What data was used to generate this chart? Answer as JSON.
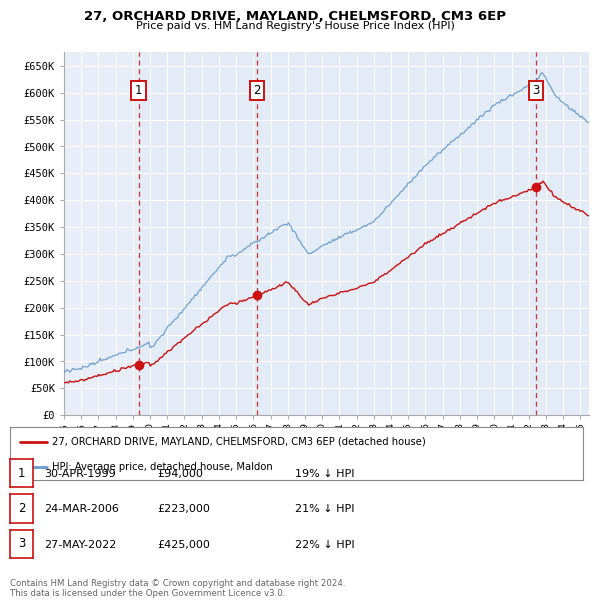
{
  "title": "27, ORCHARD DRIVE, MAYLAND, CHELMSFORD, CM3 6EP",
  "subtitle": "Price paid vs. HM Land Registry's House Price Index (HPI)",
  "ylabel_ticks": [
    "£0",
    "£50K",
    "£100K",
    "£150K",
    "£200K",
    "£250K",
    "£300K",
    "£350K",
    "£400K",
    "£450K",
    "£500K",
    "£550K",
    "£600K",
    "£650K"
  ],
  "ytick_values": [
    0,
    50000,
    100000,
    150000,
    200000,
    250000,
    300000,
    350000,
    400000,
    450000,
    500000,
    550000,
    600000,
    650000
  ],
  "xmin": 1995.0,
  "xmax": 2025.5,
  "ymin": 0,
  "ymax": 675000,
  "hpi_color": "#6699cc",
  "price_color": "#cc1111",
  "annotation_box_color": "#cc1111",
  "sale_dates": [
    1999.33,
    2006.23,
    2022.41
  ],
  "sale_prices": [
    94000,
    223000,
    425000
  ],
  "sale_labels": [
    "1",
    "2",
    "3"
  ],
  "legend_label_red": "27, ORCHARD DRIVE, MAYLAND, CHELMSFORD, CM3 6EP (detached house)",
  "legend_label_blue": "HPI: Average price, detached house, Maldon",
  "table_rows": [
    [
      "1",
      "30-APR-1999",
      "£94,000",
      "19% ↓ HPI"
    ],
    [
      "2",
      "24-MAR-2006",
      "£223,000",
      "21% ↓ HPI"
    ],
    [
      "3",
      "27-MAY-2022",
      "£425,000",
      "22% ↓ HPI"
    ]
  ],
  "footer": "Contains HM Land Registry data © Crown copyright and database right 2024.\nThis data is licensed under the Open Government Licence v3.0.",
  "plot_bg": "#e8eef8",
  "grid_bg_stripe": "#dde6f5"
}
